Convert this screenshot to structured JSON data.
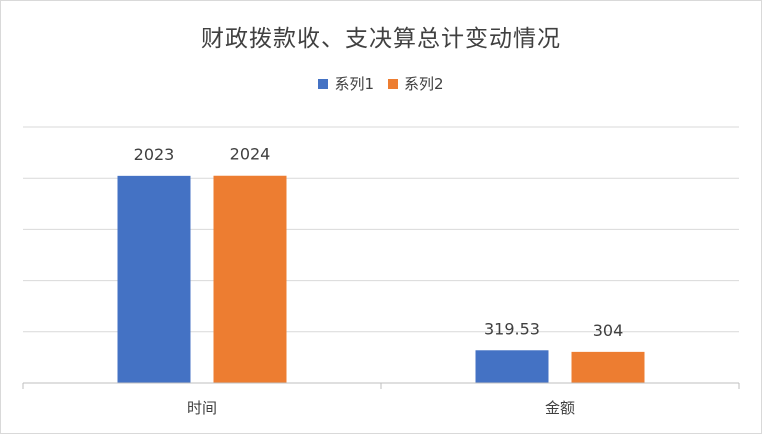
{
  "chart_data": {
    "type": "bar",
    "title": "财政拨款收、支决算总计变动情况",
    "categories": [
      "时间",
      "金额"
    ],
    "series": [
      {
        "name": "系列1",
        "color": "#4472c4",
        "values": [
          2023,
          319.53
        ],
        "labels": [
          "2023",
          "319.53"
        ]
      },
      {
        "name": "系列2",
        "color": "#ed7d31",
        "values": [
          2024,
          304
        ],
        "labels": [
          "2024",
          "304"
        ]
      }
    ],
    "xlabel": "",
    "ylabel": "",
    "ylim": [
      0,
      2500
    ],
    "grid": true,
    "legend_position": "top"
  }
}
